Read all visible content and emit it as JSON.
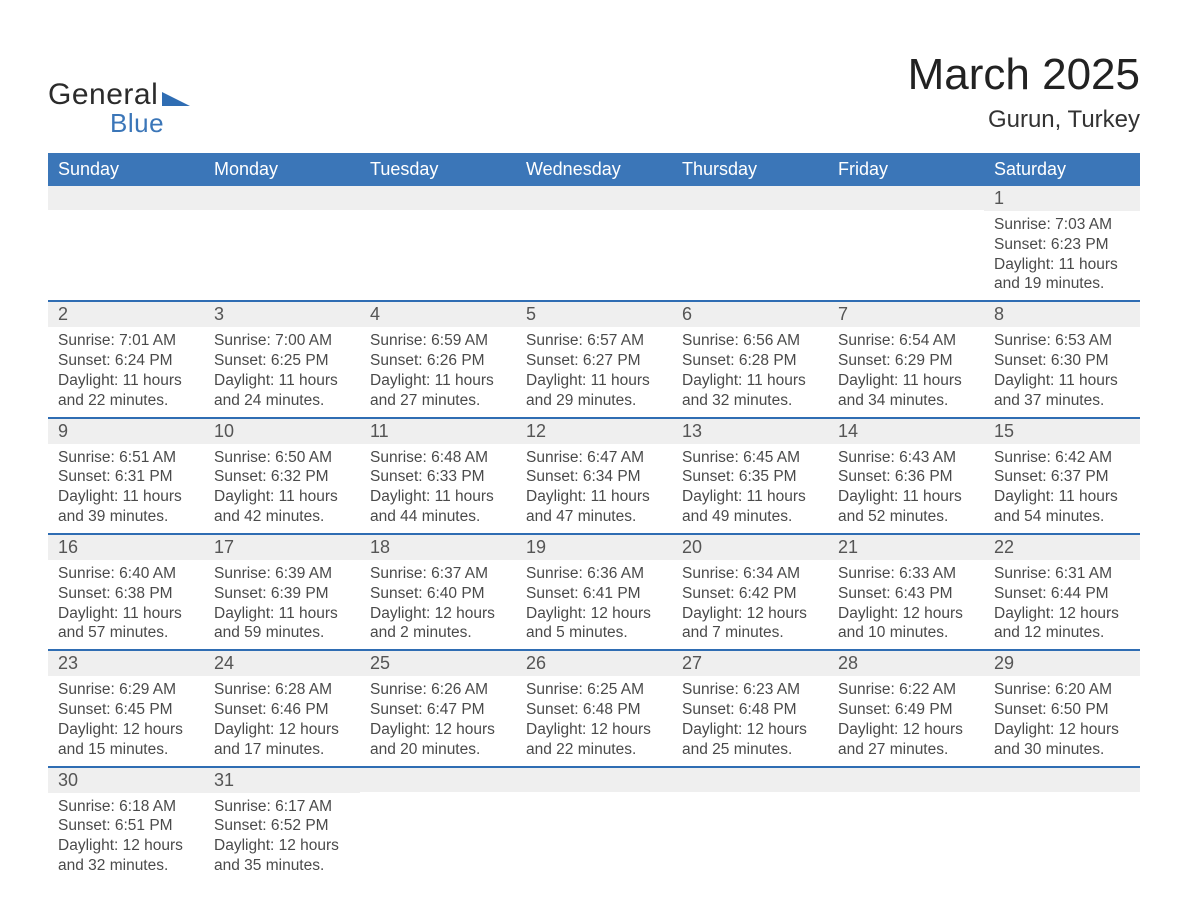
{
  "logo": {
    "text1": "General",
    "text2": "Blue",
    "triangle_color": "#2f6db3"
  },
  "title": "March 2025",
  "location": "Gurun, Turkey",
  "colors": {
    "header_bg": "#3b76b8",
    "daynum_bg": "#efefef",
    "row_border": "#2f6db3",
    "page_bg": "#ffffff"
  },
  "day_headers": [
    "Sunday",
    "Monday",
    "Tuesday",
    "Wednesday",
    "Thursday",
    "Friday",
    "Saturday"
  ],
  "weeks": [
    [
      {
        "blank": true
      },
      {
        "blank": true
      },
      {
        "blank": true
      },
      {
        "blank": true
      },
      {
        "blank": true
      },
      {
        "blank": true
      },
      {
        "day": "1",
        "sunrise": "Sunrise: 7:03 AM",
        "sunset": "Sunset: 6:23 PM",
        "daylight": "Daylight: 11 hours and 19 minutes."
      }
    ],
    [
      {
        "day": "2",
        "sunrise": "Sunrise: 7:01 AM",
        "sunset": "Sunset: 6:24 PM",
        "daylight": "Daylight: 11 hours and 22 minutes."
      },
      {
        "day": "3",
        "sunrise": "Sunrise: 7:00 AM",
        "sunset": "Sunset: 6:25 PM",
        "daylight": "Daylight: 11 hours and 24 minutes."
      },
      {
        "day": "4",
        "sunrise": "Sunrise: 6:59 AM",
        "sunset": "Sunset: 6:26 PM",
        "daylight": "Daylight: 11 hours and 27 minutes."
      },
      {
        "day": "5",
        "sunrise": "Sunrise: 6:57 AM",
        "sunset": "Sunset: 6:27 PM",
        "daylight": "Daylight: 11 hours and 29 minutes."
      },
      {
        "day": "6",
        "sunrise": "Sunrise: 6:56 AM",
        "sunset": "Sunset: 6:28 PM",
        "daylight": "Daylight: 11 hours and 32 minutes."
      },
      {
        "day": "7",
        "sunrise": "Sunrise: 6:54 AM",
        "sunset": "Sunset: 6:29 PM",
        "daylight": "Daylight: 11 hours and 34 minutes."
      },
      {
        "day": "8",
        "sunrise": "Sunrise: 6:53 AM",
        "sunset": "Sunset: 6:30 PM",
        "daylight": "Daylight: 11 hours and 37 minutes."
      }
    ],
    [
      {
        "day": "9",
        "sunrise": "Sunrise: 6:51 AM",
        "sunset": "Sunset: 6:31 PM",
        "daylight": "Daylight: 11 hours and 39 minutes."
      },
      {
        "day": "10",
        "sunrise": "Sunrise: 6:50 AM",
        "sunset": "Sunset: 6:32 PM",
        "daylight": "Daylight: 11 hours and 42 minutes."
      },
      {
        "day": "11",
        "sunrise": "Sunrise: 6:48 AM",
        "sunset": "Sunset: 6:33 PM",
        "daylight": "Daylight: 11 hours and 44 minutes."
      },
      {
        "day": "12",
        "sunrise": "Sunrise: 6:47 AM",
        "sunset": "Sunset: 6:34 PM",
        "daylight": "Daylight: 11 hours and 47 minutes."
      },
      {
        "day": "13",
        "sunrise": "Sunrise: 6:45 AM",
        "sunset": "Sunset: 6:35 PM",
        "daylight": "Daylight: 11 hours and 49 minutes."
      },
      {
        "day": "14",
        "sunrise": "Sunrise: 6:43 AM",
        "sunset": "Sunset: 6:36 PM",
        "daylight": "Daylight: 11 hours and 52 minutes."
      },
      {
        "day": "15",
        "sunrise": "Sunrise: 6:42 AM",
        "sunset": "Sunset: 6:37 PM",
        "daylight": "Daylight: 11 hours and 54 minutes."
      }
    ],
    [
      {
        "day": "16",
        "sunrise": "Sunrise: 6:40 AM",
        "sunset": "Sunset: 6:38 PM",
        "daylight": "Daylight: 11 hours and 57 minutes."
      },
      {
        "day": "17",
        "sunrise": "Sunrise: 6:39 AM",
        "sunset": "Sunset: 6:39 PM",
        "daylight": "Daylight: 11 hours and 59 minutes."
      },
      {
        "day": "18",
        "sunrise": "Sunrise: 6:37 AM",
        "sunset": "Sunset: 6:40 PM",
        "daylight": "Daylight: 12 hours and 2 minutes."
      },
      {
        "day": "19",
        "sunrise": "Sunrise: 6:36 AM",
        "sunset": "Sunset: 6:41 PM",
        "daylight": "Daylight: 12 hours and 5 minutes."
      },
      {
        "day": "20",
        "sunrise": "Sunrise: 6:34 AM",
        "sunset": "Sunset: 6:42 PM",
        "daylight": "Daylight: 12 hours and 7 minutes."
      },
      {
        "day": "21",
        "sunrise": "Sunrise: 6:33 AM",
        "sunset": "Sunset: 6:43 PM",
        "daylight": "Daylight: 12 hours and 10 minutes."
      },
      {
        "day": "22",
        "sunrise": "Sunrise: 6:31 AM",
        "sunset": "Sunset: 6:44 PM",
        "daylight": "Daylight: 12 hours and 12 minutes."
      }
    ],
    [
      {
        "day": "23",
        "sunrise": "Sunrise: 6:29 AM",
        "sunset": "Sunset: 6:45 PM",
        "daylight": "Daylight: 12 hours and 15 minutes."
      },
      {
        "day": "24",
        "sunrise": "Sunrise: 6:28 AM",
        "sunset": "Sunset: 6:46 PM",
        "daylight": "Daylight: 12 hours and 17 minutes."
      },
      {
        "day": "25",
        "sunrise": "Sunrise: 6:26 AM",
        "sunset": "Sunset: 6:47 PM",
        "daylight": "Daylight: 12 hours and 20 minutes."
      },
      {
        "day": "26",
        "sunrise": "Sunrise: 6:25 AM",
        "sunset": "Sunset: 6:48 PM",
        "daylight": "Daylight: 12 hours and 22 minutes."
      },
      {
        "day": "27",
        "sunrise": "Sunrise: 6:23 AM",
        "sunset": "Sunset: 6:48 PM",
        "daylight": "Daylight: 12 hours and 25 minutes."
      },
      {
        "day": "28",
        "sunrise": "Sunrise: 6:22 AM",
        "sunset": "Sunset: 6:49 PM",
        "daylight": "Daylight: 12 hours and 27 minutes."
      },
      {
        "day": "29",
        "sunrise": "Sunrise: 6:20 AM",
        "sunset": "Sunset: 6:50 PM",
        "daylight": "Daylight: 12 hours and 30 minutes."
      }
    ],
    [
      {
        "day": "30",
        "sunrise": "Sunrise: 6:18 AM",
        "sunset": "Sunset: 6:51 PM",
        "daylight": "Daylight: 12 hours and 32 minutes."
      },
      {
        "day": "31",
        "sunrise": "Sunrise: 6:17 AM",
        "sunset": "Sunset: 6:52 PM",
        "daylight": "Daylight: 12 hours and 35 minutes."
      },
      {
        "blank": true
      },
      {
        "blank": true
      },
      {
        "blank": true
      },
      {
        "blank": true
      },
      {
        "blank": true
      }
    ]
  ]
}
